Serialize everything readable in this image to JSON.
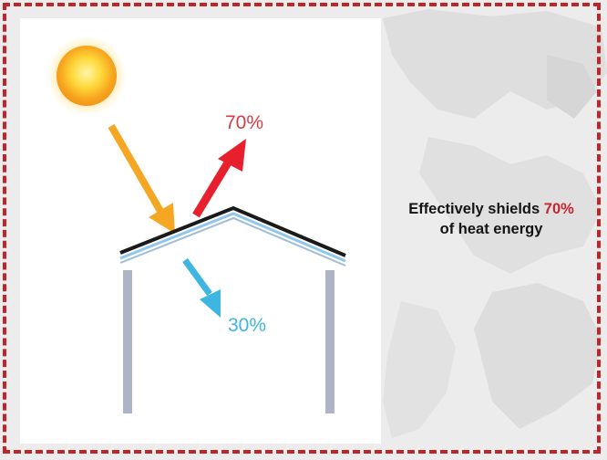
{
  "diagram": {
    "reflected": {
      "label": "70%",
      "color": "#e8202e"
    },
    "absorbed": {
      "label": "30%",
      "color": "#3eb6e1"
    },
    "incoming_color": "#f5a623"
  },
  "caption": {
    "line1_prefix": "Effectively shields ",
    "line1_value": "70%",
    "line2": "of heat energy",
    "accent_color": "#c8242e"
  }
}
